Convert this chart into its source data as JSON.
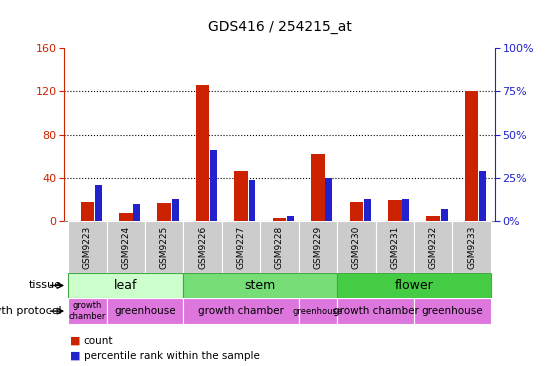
{
  "title": "GDS416 / 254215_at",
  "samples": [
    "GSM9223",
    "GSM9224",
    "GSM9225",
    "GSM9226",
    "GSM9227",
    "GSM9228",
    "GSM9229",
    "GSM9230",
    "GSM9231",
    "GSM9232",
    "GSM9233"
  ],
  "counts": [
    18,
    8,
    17,
    126,
    46,
    3,
    62,
    18,
    20,
    5,
    120
  ],
  "percentiles": [
    21,
    10,
    13,
    41,
    24,
    3,
    25,
    13,
    13,
    7,
    29
  ],
  "ylim_left": [
    0,
    160
  ],
  "ylim_right": [
    0,
    100
  ],
  "yticks_left": [
    0,
    40,
    80,
    120,
    160
  ],
  "yticks_right": [
    0,
    25,
    50,
    75,
    100
  ],
  "tissue_groups": [
    {
      "label": "leaf",
      "start": 0,
      "end": 3,
      "color": "#ccffcc",
      "border_color": "#44aa44"
    },
    {
      "label": "stem",
      "start": 3,
      "end": 7,
      "color": "#66dd66",
      "border_color": "#44aa44"
    },
    {
      "label": "flower",
      "start": 7,
      "end": 11,
      "color": "#44cc44",
      "border_color": "#44aa44"
    }
  ],
  "protocol_groups": [
    {
      "label": "growth\nchamber",
      "start": 0,
      "end": 1,
      "small": true
    },
    {
      "label": "greenhouse",
      "start": 1,
      "end": 3,
      "small": false
    },
    {
      "label": "growth chamber",
      "start": 3,
      "end": 6,
      "small": false
    },
    {
      "label": "greenhouse",
      "start": 6,
      "end": 7,
      "small": false
    },
    {
      "label": "growth chamber",
      "start": 7,
      "end": 9,
      "small": false
    },
    {
      "label": "greenhouse",
      "start": 9,
      "end": 11,
      "small": false
    }
  ],
  "count_color": "#cc2200",
  "percentile_color": "#2222cc",
  "left_axis_color": "#cc2200",
  "right_axis_color": "#2222cc",
  "proto_color": "#dd77dd",
  "grid_color": "#000000"
}
